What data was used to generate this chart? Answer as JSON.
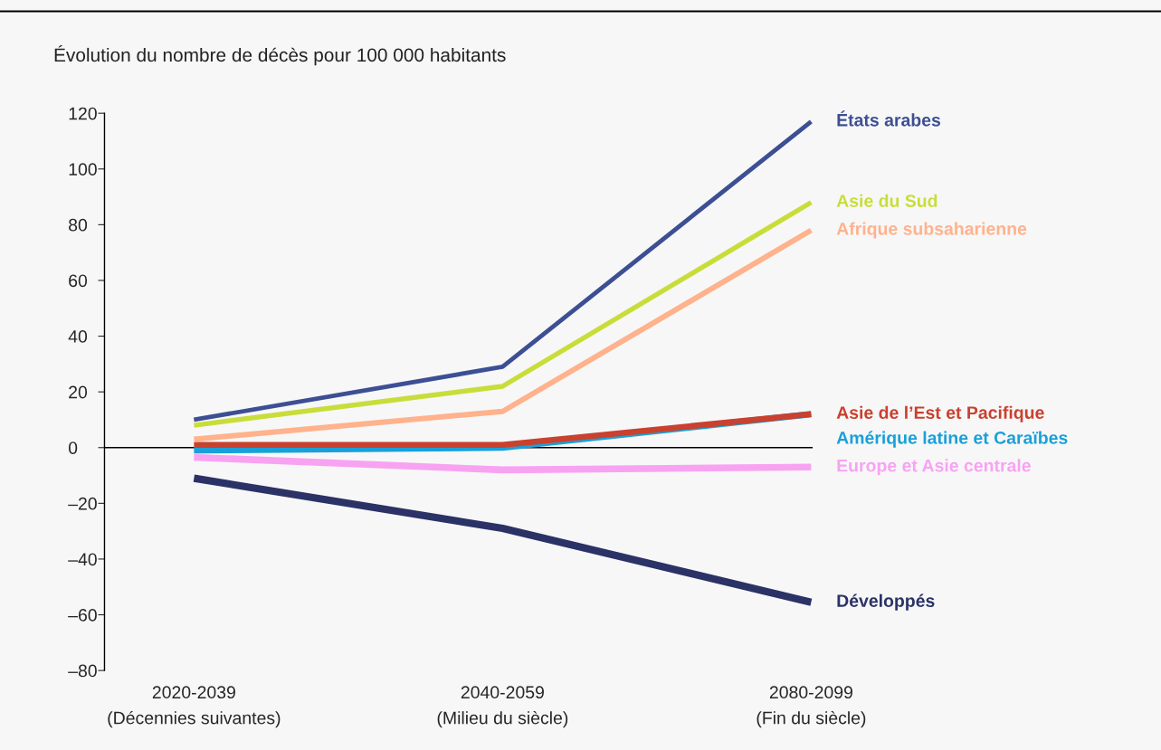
{
  "chart_data": {
    "type": "line",
    "title": "Évolution du nombre de décès pour 100 000 habitants",
    "categories": [
      "2020-2039\n(Décennies suivantes)",
      "2040-2059\n(Milieu du siècle)",
      "2080-2099\n(Fin du siècle)"
    ],
    "series": [
      {
        "name": "États arabes",
        "color": "#3d4f94",
        "values": [
          10,
          29,
          117
        ]
      },
      {
        "name": "Asie du Sud",
        "color": "#c9dd3a",
        "values": [
          8,
          22,
          88
        ]
      },
      {
        "name": "Afrique subsaharienne",
        "color": "#ffb28c",
        "values": [
          3,
          13,
          78
        ]
      },
      {
        "name": "Asie de l’Est et Pacifique",
        "color": "#c9412f",
        "values": [
          1,
          1,
          12
        ]
      },
      {
        "name": "Amérique latine et Caraïbes",
        "color": "#1aa0d8",
        "values": [
          -1,
          0,
          12
        ]
      },
      {
        "name": "Europe et Asie centrale",
        "color": "#f7a3f2",
        "values": [
          -3.5,
          -8,
          -7
        ]
      },
      {
        "name": "Développés",
        "color": "#2b3266",
        "values": [
          -11,
          -29,
          -55.5
        ]
      }
    ],
    "ylim": [
      -80,
      120
    ],
    "yticks": [
      120,
      100,
      80,
      60,
      40,
      20,
      0,
      {
        "value": -20,
        "label": "–20"
      },
      {
        "value": -40,
        "label": "–40"
      },
      {
        "value": -60,
        "label": "–60"
      },
      {
        "value": -80,
        "label": "–80"
      }
    ],
    "ref_lines": [
      {
        "axis": "y",
        "value": 0,
        "color": "#000000"
      }
    ],
    "grid": false,
    "legend": false,
    "marker": "none",
    "line_style": "solid"
  }
}
